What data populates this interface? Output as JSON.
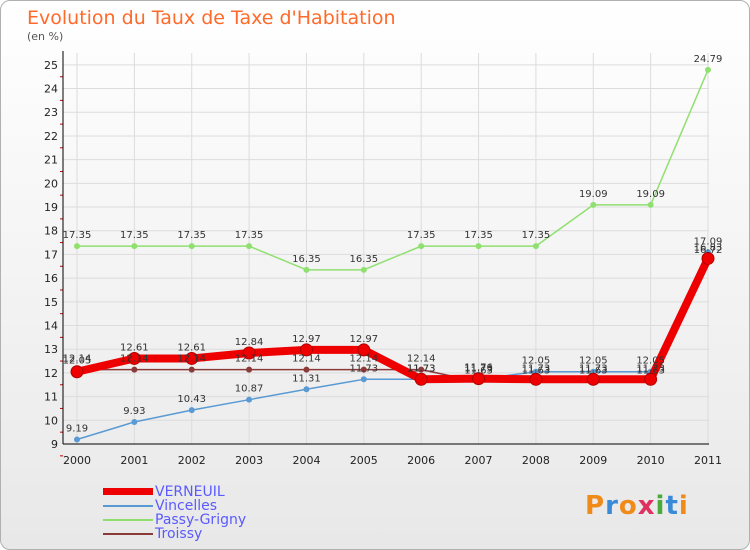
{
  "chart_data": {
    "type": "line",
    "title": "Evolution du Taux de Taxe d'Habitation",
    "unit_label": "(en %)",
    "xlabel": "",
    "ylabel": "",
    "ylim": [
      9,
      25.5
    ],
    "y_ticks": [
      "9",
      "10",
      "11",
      "12",
      "13",
      "14",
      "15",
      "16",
      "17",
      "18",
      "19",
      "20",
      "21",
      "22",
      "23",
      "24",
      "25"
    ],
    "categories": [
      "2000",
      "2001",
      "2002",
      "2003",
      "2004",
      "2005",
      "2006",
      "2007",
      "2008",
      "2009",
      "2010",
      "2011"
    ],
    "series": [
      {
        "name": "VERNEUIL",
        "color": "#ee0000",
        "values": [
          12.05,
          12.61,
          12.61,
          12.84,
          12.97,
          12.97,
          11.73,
          11.76,
          11.73,
          11.73,
          11.73,
          16.83
        ],
        "labels": [
          "12.05",
          "12.61",
          "12.61",
          "12.84",
          "12.97",
          "12.97",
          "11.73",
          "11.76",
          "11.73",
          "11.73",
          "11.73",
          "16.83"
        ]
      },
      {
        "name": "Vincelles",
        "color": "#5a9ad4",
        "values": [
          9.19,
          9.93,
          10.43,
          10.87,
          11.31,
          11.73,
          11.73,
          11.73,
          12.05,
          12.05,
          12.05,
          17.09
        ],
        "labels": [
          "9.19",
          "9.93",
          "10.43",
          "10.87",
          "11.31",
          "11.73",
          "11.73",
          "11.73",
          "12.05",
          "12.05",
          "12.05",
          "17.09"
        ]
      },
      {
        "name": "Passy-Grigny",
        "color": "#90e070",
        "values": [
          17.35,
          17.35,
          17.35,
          17.35,
          16.35,
          16.35,
          17.35,
          17.35,
          17.35,
          19.09,
          19.09,
          24.79
        ],
        "labels": [
          "17.35",
          "17.35",
          "17.35",
          "17.35",
          "16.35",
          "16.35",
          "17.35",
          "17.35",
          "17.35",
          "19.09",
          "19.09",
          "24.79"
        ]
      },
      {
        "name": "Troissy",
        "color": "#8b3a3a",
        "values": [
          12.14,
          12.14,
          12.14,
          12.14,
          12.14,
          12.14,
          12.14,
          11.63,
          11.63,
          11.63,
          11.63,
          16.72
        ],
        "labels": [
          "12.14",
          "12.14",
          "12.14",
          "12.14",
          "12.14",
          "12.14",
          "12.14",
          "11.63",
          "11.63",
          "11.63",
          "11.63",
          "16.72"
        ]
      }
    ],
    "legend_position": "bottom-left"
  },
  "logo": {
    "text": "Proxiti"
  }
}
